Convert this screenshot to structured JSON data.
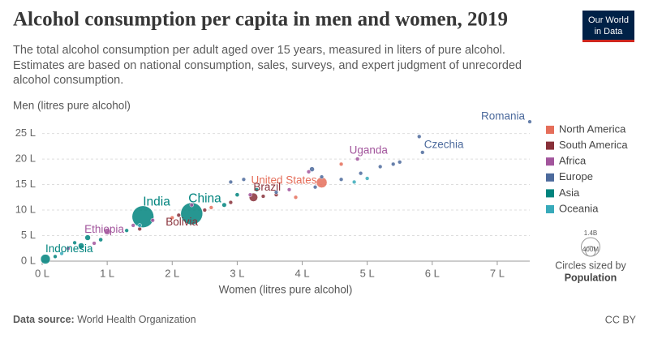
{
  "logo": [
    "Our World",
    "in Data"
  ],
  "footer": {
    "source_label": "Data source:",
    "source": "World Health Organization",
    "license": "CC BY"
  },
  "chart_data": {
    "type": "scatter",
    "title": "Alcohol consumption per capita in men and women, 2019",
    "subtitle": [
      "The total alcohol consumption per adult aged over 15 years, measured in liters of pure alcohol.",
      "Estimates are based on national consumption, sales, surveys, and expert judgment of unrecorded",
      "alcohol consumption."
    ],
    "y_label": "Men (litres pure alcohol)",
    "x_label": "Women (litres pure alcohol)",
    "xlim": [
      0,
      7.5
    ],
    "ylim": [
      0,
      27
    ],
    "xticks": [
      {
        "value": 0,
        "label": "0 L"
      },
      {
        "value": 1,
        "label": "1 L"
      },
      {
        "value": 2,
        "label": "2 L"
      },
      {
        "value": 3,
        "label": "3 L"
      },
      {
        "value": 4,
        "label": "4 L"
      },
      {
        "value": 5,
        "label": "5 L"
      },
      {
        "value": 6,
        "label": "6 L"
      },
      {
        "value": 7,
        "label": "7 L"
      }
    ],
    "yticks": [
      {
        "value": 0,
        "label": "0 L"
      },
      {
        "value": 5,
        "label": "5 L"
      },
      {
        "value": 10,
        "label": "10 L"
      },
      {
        "value": 15,
        "label": "15 L"
      },
      {
        "value": 20,
        "label": "20 L"
      },
      {
        "value": 25,
        "label": "25 L"
      }
    ],
    "grid": true,
    "legend_position": "right",
    "size_legend_title": [
      "Circles sized by",
      "Population"
    ],
    "size_legend": [
      {
        "value": 1400,
        "label": "1.4B"
      },
      {
        "value": 400,
        "label": "400M"
      }
    ],
    "series": [
      {
        "name": "North America",
        "color": "#e56e5a",
        "label_color": "#e56e5a",
        "x": [
          4.3,
          2.6,
          3.9,
          4.6,
          2.0
        ],
        "values": [
          15.4,
          10.5,
          12.5,
          19,
          8.5
        ],
        "sizes": [
          330,
          20,
          15,
          10,
          5
        ],
        "labels": [
          "United States",
          null,
          null,
          null,
          null
        ]
      },
      {
        "name": "South America",
        "color": "#883039",
        "label_color": "#883039",
        "x": [
          3.25,
          2.1,
          2.9,
          3.6,
          2.5,
          1.5,
          3.4
        ],
        "values": [
          12.5,
          9.0,
          11.5,
          13,
          10,
          6.3,
          12.7
        ],
        "sizes": [
          212,
          12,
          45,
          30,
          20,
          10,
          18
        ],
        "labels": [
          "Brazil",
          "Bolivia",
          null,
          null,
          null,
          null,
          null
        ]
      },
      {
        "name": "Africa",
        "color": "#a2559c",
        "label_color": "#a2559c",
        "x": [
          4.85,
          1.0,
          1.4,
          0.8,
          2.3,
          1.7,
          3.8,
          4.1,
          3.2,
          0.4
        ],
        "values": [
          20,
          5.8,
          7,
          3.5,
          11,
          8,
          14,
          17.5,
          13,
          2.5
        ],
        "sizes": [
          45,
          115,
          20,
          30,
          10,
          15,
          8,
          5,
          6,
          25
        ],
        "labels": [
          "Uganda",
          "Ethiopia",
          null,
          null,
          null,
          null,
          null,
          null,
          null,
          null
        ]
      },
      {
        "name": "Europe",
        "color": "#4c6a9c",
        "label_color": "#4c6a9c",
        "x": [
          7.5,
          5.85,
          5.5,
          4.15,
          4.6,
          3.6,
          5.2,
          4.9,
          3.1,
          4.2,
          4.3,
          5.8,
          2.9,
          5.4
        ],
        "values": [
          27.3,
          21.3,
          19.4,
          18,
          16,
          13.5,
          18.5,
          17.2,
          16,
          14.5,
          16.5,
          24.4,
          15.5,
          19
        ],
        "sizes": [
          19,
          11,
          10,
          70,
          40,
          30,
          8,
          5,
          6,
          10,
          5,
          4,
          3,
          9
        ],
        "labels": [
          "Romania",
          "Czechia",
          null,
          null,
          null,
          null,
          null,
          null,
          null,
          null,
          null,
          null,
          null,
          null
        ]
      },
      {
        "name": "Asia",
        "color": "#00847e",
        "label_color": "#00847e",
        "x": [
          1.55,
          2.3,
          0.05,
          0.2,
          0.6,
          0.9,
          1.3,
          2.8,
          3.0,
          3.3,
          0.7,
          0.5
        ],
        "values": [
          8.7,
          9.3,
          0.4,
          0.9,
          3,
          4.2,
          6,
          11,
          13,
          14,
          4.6,
          3.6
        ],
        "sizes": [
          1380,
          1400,
          270,
          30,
          100,
          50,
          20,
          60,
          50,
          30,
          90,
          25
        ],
        "labels": [
          "India",
          "China",
          "Indonesia",
          null,
          null,
          null,
          null,
          null,
          null,
          null,
          null,
          null
        ]
      },
      {
        "name": "Oceania",
        "color": "#38aaba",
        "label_color": "#38aaba",
        "x": [
          4.8,
          5.0,
          1.5,
          0.3
        ],
        "values": [
          15.5,
          16.2,
          7,
          1.5
        ],
        "sizes": [
          25,
          5,
          8,
          1
        ],
        "labels": [
          null,
          null,
          null,
          null
        ]
      }
    ]
  }
}
